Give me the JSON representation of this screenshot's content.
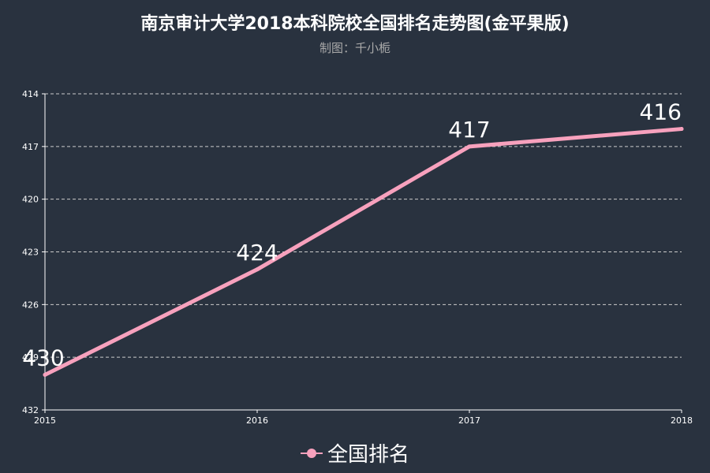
{
  "chart_data": {
    "type": "line",
    "title": "南京审计大学2018本科院校全国排名走势图(金平果版)",
    "subtitle": "制图：千小栀",
    "x": [
      "2015",
      "2016",
      "2017",
      "2018"
    ],
    "y_ticks": [
      414,
      417,
      420,
      423,
      426,
      429,
      432
    ],
    "ylim": [
      414,
      432
    ],
    "y_inverted": true,
    "grid": true,
    "legend_position": "bottom-center",
    "series": [
      {
        "name": "全国排名",
        "values": [
          430,
          424,
          417,
          416
        ],
        "color": "#f7a1bd"
      }
    ]
  }
}
